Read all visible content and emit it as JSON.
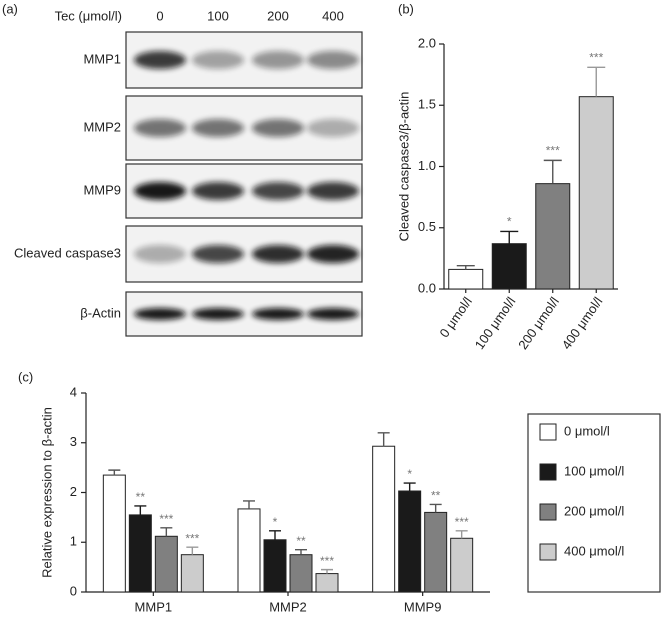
{
  "panel_a": {
    "label": "(a)",
    "dose_label": "Tec (μmol/l)",
    "doses": [
      "0",
      "100",
      "200",
      "400"
    ],
    "rows": [
      "MMP1",
      "MMP2",
      "MMP9",
      "Cleaved caspase3",
      "β-Actin"
    ]
  },
  "chart_data": [
    {
      "type": "bar",
      "panel_label": "(b)",
      "ylabel": "Cleaved caspase3/β-actin",
      "categories": [
        "0 μmol/l",
        "100 μmol/l",
        "200 μmol/l",
        "400 μmol/l"
      ],
      "values": [
        0.16,
        0.37,
        0.86,
        1.57
      ],
      "errors": [
        0.03,
        0.1,
        0.19,
        0.24
      ],
      "annotations": [
        null,
        "*",
        "***",
        "***"
      ],
      "colors": [
        "#ffffff",
        "#1a1a1a",
        "#808080",
        "#cccccc"
      ],
      "ylim": [
        0,
        2.0
      ],
      "yticks": [
        {
          "value": 0,
          "label": "0.0"
        },
        0.5,
        {
          "value": 1,
          "label": "1.0"
        },
        1.5,
        {
          "value": 2,
          "label": "2.0"
        }
      ]
    },
    {
      "type": "grouped_bar",
      "panel_label": "(c)",
      "ylabel": "Relative expression to β-actin",
      "categories": [
        "MMP1",
        "MMP2",
        "MMP9"
      ],
      "series": [
        {
          "name": "0 μmol/l",
          "color": "#ffffff",
          "values": [
            2.35,
            1.67,
            2.93
          ],
          "errors": [
            0.1,
            0.16,
            0.27
          ]
        },
        {
          "name": "100 μmol/l",
          "color": "#1a1a1a",
          "values": [
            1.55,
            1.05,
            2.03
          ],
          "errors": [
            0.18,
            0.18,
            0.16
          ],
          "annotations": [
            "**",
            "*",
            "*"
          ]
        },
        {
          "name": "200 μmol/l",
          "color": "#808080",
          "values": [
            1.12,
            0.75,
            1.6
          ],
          "errors": [
            0.17,
            0.1,
            0.16
          ],
          "annotations": [
            "***",
            "**",
            "**"
          ]
        },
        {
          "name": "400 μmol/l",
          "color": "#cccccc",
          "values": [
            0.75,
            0.37,
            1.08
          ],
          "errors": [
            0.15,
            0.08,
            0.15
          ],
          "annotations": [
            "***",
            "***",
            "***"
          ]
        }
      ],
      "ylim": [
        0,
        4
      ],
      "yticks": [
        0,
        1,
        2,
        3,
        4
      ],
      "legend": "right"
    }
  ]
}
